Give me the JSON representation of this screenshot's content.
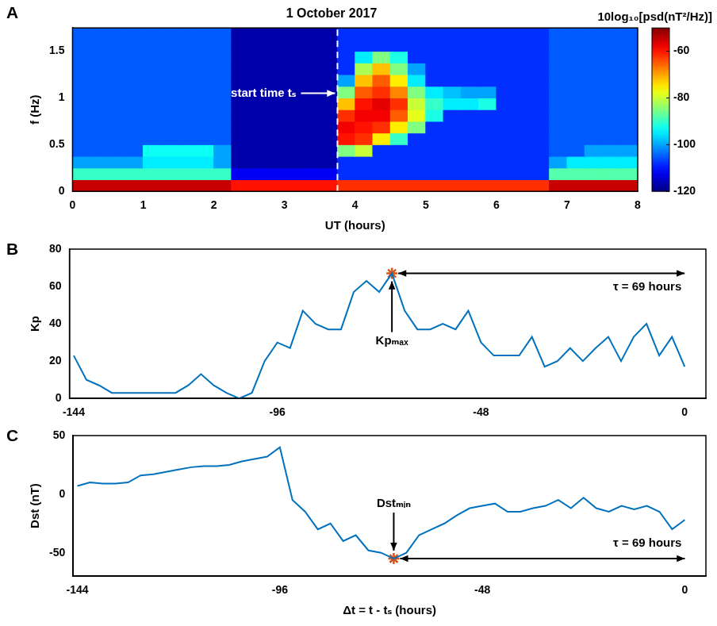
{
  "chart_data": [
    {
      "type": "heatmap",
      "panel_label": "A",
      "title": "1 October 2017",
      "x_label": "UT (hours)",
      "y_label": "f (Hz)",
      "xlim": [
        0,
        8
      ],
      "xticks": [
        0,
        1,
        2,
        3,
        4,
        5,
        6,
        7,
        8
      ],
      "ylim": [
        0,
        1.75
      ],
      "yticks": [
        0,
        0.5,
        1,
        1.5
      ],
      "grid": false,
      "x_bins": [
        0,
        0.25,
        0.5,
        0.75,
        1,
        1.25,
        1.5,
        1.75,
        2,
        2.25,
        2.5,
        2.75,
        3,
        3.25,
        3.5,
        3.75,
        4,
        4.25,
        4.5,
        4.75,
        5,
        5.25,
        5.5,
        5.75,
        6,
        6.25,
        6.5,
        6.75,
        7,
        7.25,
        7.5,
        7.75,
        8
      ],
      "y_bins": [
        0,
        0.125,
        0.25,
        0.375,
        0.5,
        0.625,
        0.75,
        0.875,
        1,
        1.125,
        1.25,
        1.375,
        1.5,
        1.625,
        1.75
      ],
      "cells": [
        [
          -55,
          -55,
          -55,
          -55,
          -55,
          -55,
          -55,
          -55,
          -55,
          -60,
          -60,
          -60,
          -60,
          -60,
          -60,
          -62,
          -62,
          -62,
          -62,
          -62,
          -62,
          -62,
          -62,
          -62,
          -62,
          -62,
          -62,
          -55,
          -55,
          -55,
          -55,
          -55
        ],
        [
          -90,
          -90,
          -90,
          -90,
          -90,
          -90,
          -90,
          -90,
          -90,
          -112,
          -112,
          -112,
          -112,
          -112,
          -112,
          -108,
          -108,
          -108,
          -108,
          -108,
          -108,
          -108,
          -108,
          -108,
          -108,
          -108,
          -108,
          -88,
          -88,
          -88,
          -88,
          -88
        ],
        [
          -100,
          -100,
          -100,
          -100,
          -95,
          -95,
          -95,
          -95,
          -100,
          -117,
          -117,
          -117,
          -117,
          -117,
          -117,
          -108,
          -108,
          -108,
          -108,
          -108,
          -108,
          -108,
          -108,
          -108,
          -108,
          -108,
          -108,
          -100,
          -95,
          -95,
          -95,
          -95
        ],
        [
          -105,
          -105,
          -105,
          -105,
          -93,
          -93,
          -93,
          -93,
          -100,
          -117,
          -117,
          -117,
          -117,
          -117,
          -117,
          -85,
          -80,
          -108,
          -108,
          -108,
          -108,
          -108,
          -108,
          -108,
          -108,
          -108,
          -108,
          -105,
          -105,
          -100,
          -100,
          -100
        ],
        [
          -105,
          -105,
          -105,
          -105,
          -105,
          -105,
          -105,
          -105,
          -105,
          -117,
          -117,
          -117,
          -117,
          -117,
          -117,
          -60,
          -62,
          -75,
          -90,
          -108,
          -108,
          -108,
          -108,
          -108,
          -108,
          -108,
          -108,
          -105,
          -105,
          -105,
          -105,
          -105
        ],
        [
          -105,
          -105,
          -105,
          -105,
          -105,
          -105,
          -105,
          -105,
          -105,
          -117,
          -117,
          -117,
          -117,
          -117,
          -117,
          -58,
          -60,
          -62,
          -75,
          -85,
          -108,
          -108,
          -108,
          -108,
          -108,
          -108,
          -108,
          -105,
          -105,
          -105,
          -105,
          -105
        ],
        [
          -105,
          -105,
          -105,
          -105,
          -105,
          -105,
          -105,
          -105,
          -105,
          -117,
          -117,
          -117,
          -117,
          -117,
          -117,
          -62,
          -58,
          -58,
          -65,
          -78,
          -92,
          -108,
          -108,
          -108,
          -108,
          -108,
          -108,
          -105,
          -105,
          -105,
          -105,
          -105
        ],
        [
          -105,
          -105,
          -105,
          -105,
          -105,
          -105,
          -105,
          -105,
          -105,
          -117,
          -117,
          -117,
          -117,
          -117,
          -117,
          -72,
          -60,
          -57,
          -62,
          -80,
          -90,
          -95,
          -95,
          -92,
          -108,
          -108,
          -108,
          -105,
          -105,
          -105,
          -105,
          -105
        ],
        [
          -105,
          -105,
          -105,
          -105,
          -105,
          -105,
          -105,
          -105,
          -105,
          -117,
          -117,
          -117,
          -117,
          -117,
          -117,
          -85,
          -65,
          -62,
          -68,
          -85,
          -95,
          -98,
          -100,
          -100,
          -108,
          -108,
          -108,
          -105,
          -105,
          -105,
          -105,
          -105
        ],
        [
          -105,
          -105,
          -105,
          -105,
          -105,
          -105,
          -105,
          -105,
          -105,
          -117,
          -117,
          -117,
          -117,
          -117,
          -117,
          -100,
          -72,
          -65,
          -75,
          -95,
          -108,
          -108,
          -108,
          -108,
          -108,
          -108,
          -108,
          -105,
          -105,
          -105,
          -105,
          -105
        ],
        [
          -105,
          -105,
          -105,
          -105,
          -105,
          -105,
          -105,
          -105,
          -105,
          -117,
          -117,
          -117,
          -117,
          -117,
          -117,
          -108,
          -82,
          -72,
          -85,
          -100,
          -108,
          -108,
          -108,
          -108,
          -108,
          -108,
          -108,
          -105,
          -105,
          -105,
          -105,
          -105
        ],
        [
          -105,
          -105,
          -105,
          -105,
          -105,
          -105,
          -105,
          -105,
          -105,
          -117,
          -117,
          -117,
          -117,
          -117,
          -117,
          -108,
          -95,
          -85,
          -92,
          -108,
          -108,
          -108,
          -108,
          -108,
          -108,
          -108,
          -108,
          -105,
          -105,
          -105,
          -105,
          -105
        ],
        [
          -105,
          -105,
          -105,
          -105,
          -105,
          -105,
          -105,
          -105,
          -105,
          -117,
          -117,
          -117,
          -117,
          -117,
          -117,
          -108,
          -108,
          -108,
          -108,
          -108,
          -108,
          -108,
          -108,
          -108,
          -108,
          -108,
          -108,
          -105,
          -105,
          -105,
          -105,
          -105
        ],
        [
          -105,
          -105,
          -105,
          -105,
          -105,
          -105,
          -105,
          -105,
          -105,
          -117,
          -117,
          -117,
          -117,
          -117,
          -117,
          -108,
          -108,
          -108,
          -108,
          -108,
          -108,
          -108,
          -108,
          -108,
          -108,
          -108,
          -108,
          -105,
          -105,
          -105,
          -105,
          -105
        ]
      ],
      "colorbar": {
        "label": "10log₁₀[psd(nT²/Hz)]",
        "range": [
          -120,
          -50
        ],
        "ticks": [
          -120,
          -100,
          -80,
          -60
        ]
      },
      "vline": {
        "x": 3.75,
        "color": "#ffffff",
        "line_style": "dashed"
      },
      "annotations": [
        {
          "text": "start time tₛ",
          "x": 3.75,
          "y": 1.05,
          "color": "#ffffff"
        }
      ]
    },
    {
      "type": "line",
      "panel_label": "B",
      "y_label": "Kp",
      "xlim": [
        -145,
        5
      ],
      "xticks": [
        -144,
        -96,
        -48,
        0
      ],
      "ylim": [
        0,
        80
      ],
      "yticks": [
        0,
        20,
        40,
        60,
        80
      ],
      "grid": false,
      "color": "#0072bd",
      "line_style": "solid",
      "x": [
        -144,
        -141,
        -138,
        -135,
        -132,
        -129,
        -126,
        -123,
        -120,
        -117,
        -114,
        -111,
        -108,
        -105,
        -102,
        -99,
        -96,
        -93,
        -90,
        -87,
        -84,
        -81,
        -78,
        -75,
        -72,
        -69,
        -66,
        -63,
        -60,
        -57,
        -54,
        -51,
        -48,
        -45,
        -42,
        -39,
        -36,
        -33,
        -30,
        -27,
        -24,
        -21,
        -18,
        -15,
        -12,
        -9,
        -6,
        -3,
        0
      ],
      "values": [
        23,
        10,
        7,
        3,
        3,
        3,
        3,
        3,
        3,
        7,
        13,
        7,
        3,
        0,
        3,
        20,
        30,
        27,
        47,
        40,
        37,
        37,
        57,
        63,
        57,
        67,
        47,
        37,
        37,
        40,
        37,
        47,
        30,
        23,
        23,
        23,
        33,
        17,
        20,
        27,
        20,
        27,
        33,
        20,
        33,
        40,
        23,
        33,
        17
      ],
      "annotations": [
        {
          "text": "Kpₘₐₓ",
          "x": -69,
          "y": 67,
          "marker": "star",
          "color": "#d95319"
        }
      ],
      "interval": {
        "text": "τ = 69 hours",
        "x_from": -69,
        "x_to": 0,
        "y": 67
      }
    },
    {
      "type": "line",
      "panel_label": "C",
      "y_label": "Dst (nT)",
      "x_label": "Δt = t - tₛ (hours)",
      "xlim": [
        -145,
        5
      ],
      "xticks": [
        -144,
        -96,
        -48,
        0
      ],
      "ylim": [
        -70,
        50
      ],
      "yticks": [
        -50,
        0,
        50
      ],
      "grid": false,
      "color": "#0072bd",
      "line_style": "solid",
      "x": [
        -144,
        -141,
        -138,
        -135,
        -132,
        -129,
        -126,
        -123,
        -120,
        -117,
        -114,
        -111,
        -108,
        -105,
        -102,
        -99,
        -96,
        -93,
        -90,
        -87,
        -84,
        -81,
        -78,
        -75,
        -72,
        -69,
        -66,
        -63,
        -60,
        -57,
        -54,
        -51,
        -48,
        -45,
        -42,
        -39,
        -36,
        -33,
        -30,
        -27,
        -24,
        -21,
        -18,
        -15,
        -12,
        -9,
        -6,
        -3,
        0
      ],
      "values": [
        7,
        10,
        9,
        9,
        10,
        16,
        17,
        19,
        21,
        23,
        24,
        24,
        25,
        28,
        30,
        32,
        40,
        -5,
        -15,
        -30,
        -25,
        -40,
        -35,
        -48,
        -50,
        -55,
        -50,
        -35,
        -30,
        -25,
        -18,
        -12,
        -10,
        -8,
        -15,
        -15,
        -12,
        -10,
        -5,
        -12,
        -3,
        -12,
        -15,
        -10,
        -13,
        -10,
        -15,
        -30,
        -22
      ],
      "annotations": [
        {
          "text": "Dstₘᵢₙ",
          "x": -69,
          "y": -55,
          "marker": "star",
          "color": "#d95319"
        }
      ],
      "interval": {
        "text": "τ = 69 hours",
        "x_from": -69,
        "x_to": 0,
        "y": -55
      }
    }
  ]
}
